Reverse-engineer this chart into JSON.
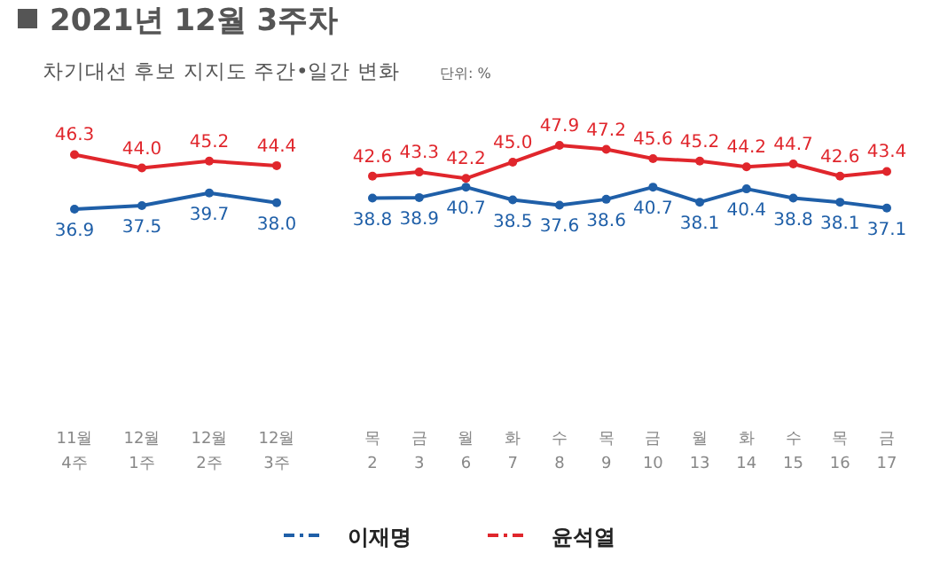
{
  "chart_data": [
    {
      "type": "line",
      "title": "2021년 12월 3주차",
      "subtitle": "차기대선 후보 지지도 주간•일간 변화",
      "annotations": [
        "단위: %"
      ],
      "categories": [
        "11월 4주",
        "12월 1주",
        "12월 2주",
        "12월 3주"
      ],
      "marker": "circle",
      "line_style": "solid",
      "series": [
        {
          "color": "#1f5fa8",
          "values": [
            36.9,
            37.5,
            39.7,
            38.0
          ],
          "value_labels": [
            "36.9",
            "37.5",
            "39.7",
            "38.0"
          ]
        },
        {
          "color": "#e0262c",
          "values": [
            46.3,
            44.0,
            45.2,
            44.4
          ],
          "value_labels": [
            "46.3",
            "44.0",
            "45.2",
            "44.4"
          ]
        }
      ]
    },
    {
      "type": "line",
      "categories": [
        "목 2",
        "금 3",
        "월 6",
        "화 7",
        "수 8",
        "목 9",
        "금 10",
        "월 13",
        "화 14",
        "수 15",
        "목 16",
        "금 17"
      ],
      "marker": "circle",
      "line_style": "solid",
      "legend": "bottom",
      "series": [
        {
          "name": "이재명",
          "color": "#1f5fa8",
          "values": [
            38.8,
            38.9,
            40.7,
            38.5,
            37.6,
            38.6,
            40.7,
            38.1,
            40.4,
            38.8,
            38.1,
            37.1
          ],
          "value_labels": [
            "38.8",
            "38.9",
            "40.7",
            "38.5",
            "37.6",
            "38.6",
            "40.7",
            "38.1",
            "40.4",
            "38.8",
            "38.1",
            "37.1"
          ]
        },
        {
          "name": "윤석열",
          "color": "#e0262c",
          "values": [
            42.6,
            43.3,
            42.2,
            45.0,
            47.9,
            47.2,
            45.6,
            45.2,
            44.2,
            44.7,
            42.6,
            43.4
          ],
          "value_labels": [
            "42.6",
            "43.3",
            "42.2",
            "45.0",
            "47.9",
            "47.2",
            "45.6",
            "45.2",
            "44.2",
            "44.7",
            "42.6",
            "43.4"
          ]
        }
      ]
    }
  ]
}
